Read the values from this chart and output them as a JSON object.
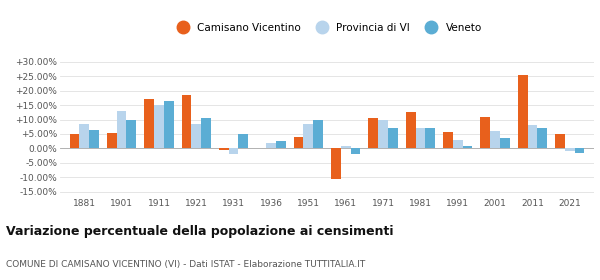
{
  "years": [
    1881,
    1901,
    1911,
    1921,
    1931,
    1936,
    1951,
    1961,
    1971,
    1981,
    1991,
    2001,
    2011,
    2021
  ],
  "camisano": [
    5.0,
    5.5,
    17.0,
    18.5,
    -0.5,
    0.1,
    4.0,
    -10.5,
    10.5,
    12.5,
    5.8,
    11.0,
    25.5,
    5.0
  ],
  "provincia": [
    8.5,
    13.0,
    15.0,
    8.5,
    -2.0,
    2.0,
    8.5,
    1.0,
    10.0,
    7.0,
    3.0,
    6.0,
    8.0,
    -1.0
  ],
  "veneto": [
    6.5,
    10.0,
    16.5,
    10.5,
    5.0,
    2.5,
    10.0,
    -2.0,
    7.0,
    7.0,
    1.0,
    3.5,
    7.0,
    -1.5
  ],
  "color_camisano": "#E8601C",
  "color_provincia": "#B8D4EC",
  "color_veneto": "#5BADD4",
  "title": "Variazione percentuale della popolazione ai censimenti",
  "subtitle": "COMUNE DI CAMISANO VICENTINO (VI) - Dati ISTAT - Elaborazione TUTTITALIA.IT",
  "legend_labels": [
    "Camisano Vicentino",
    "Provincia di VI",
    "Veneto"
  ],
  "ylim": [
    -16.5,
    33
  ],
  "yticks": [
    -15,
    -10,
    -5,
    0,
    5,
    10,
    15,
    20,
    25,
    30
  ],
  "ytick_labels": [
    "-15.00%",
    "-10.00%",
    "-5.00%",
    "0.00%",
    "+5.00%",
    "+10.00%",
    "+15.00%",
    "+20.00%",
    "+25.00%",
    "+30.00%"
  ],
  "bg_color": "#ffffff",
  "grid_color": "#e0e0e0"
}
